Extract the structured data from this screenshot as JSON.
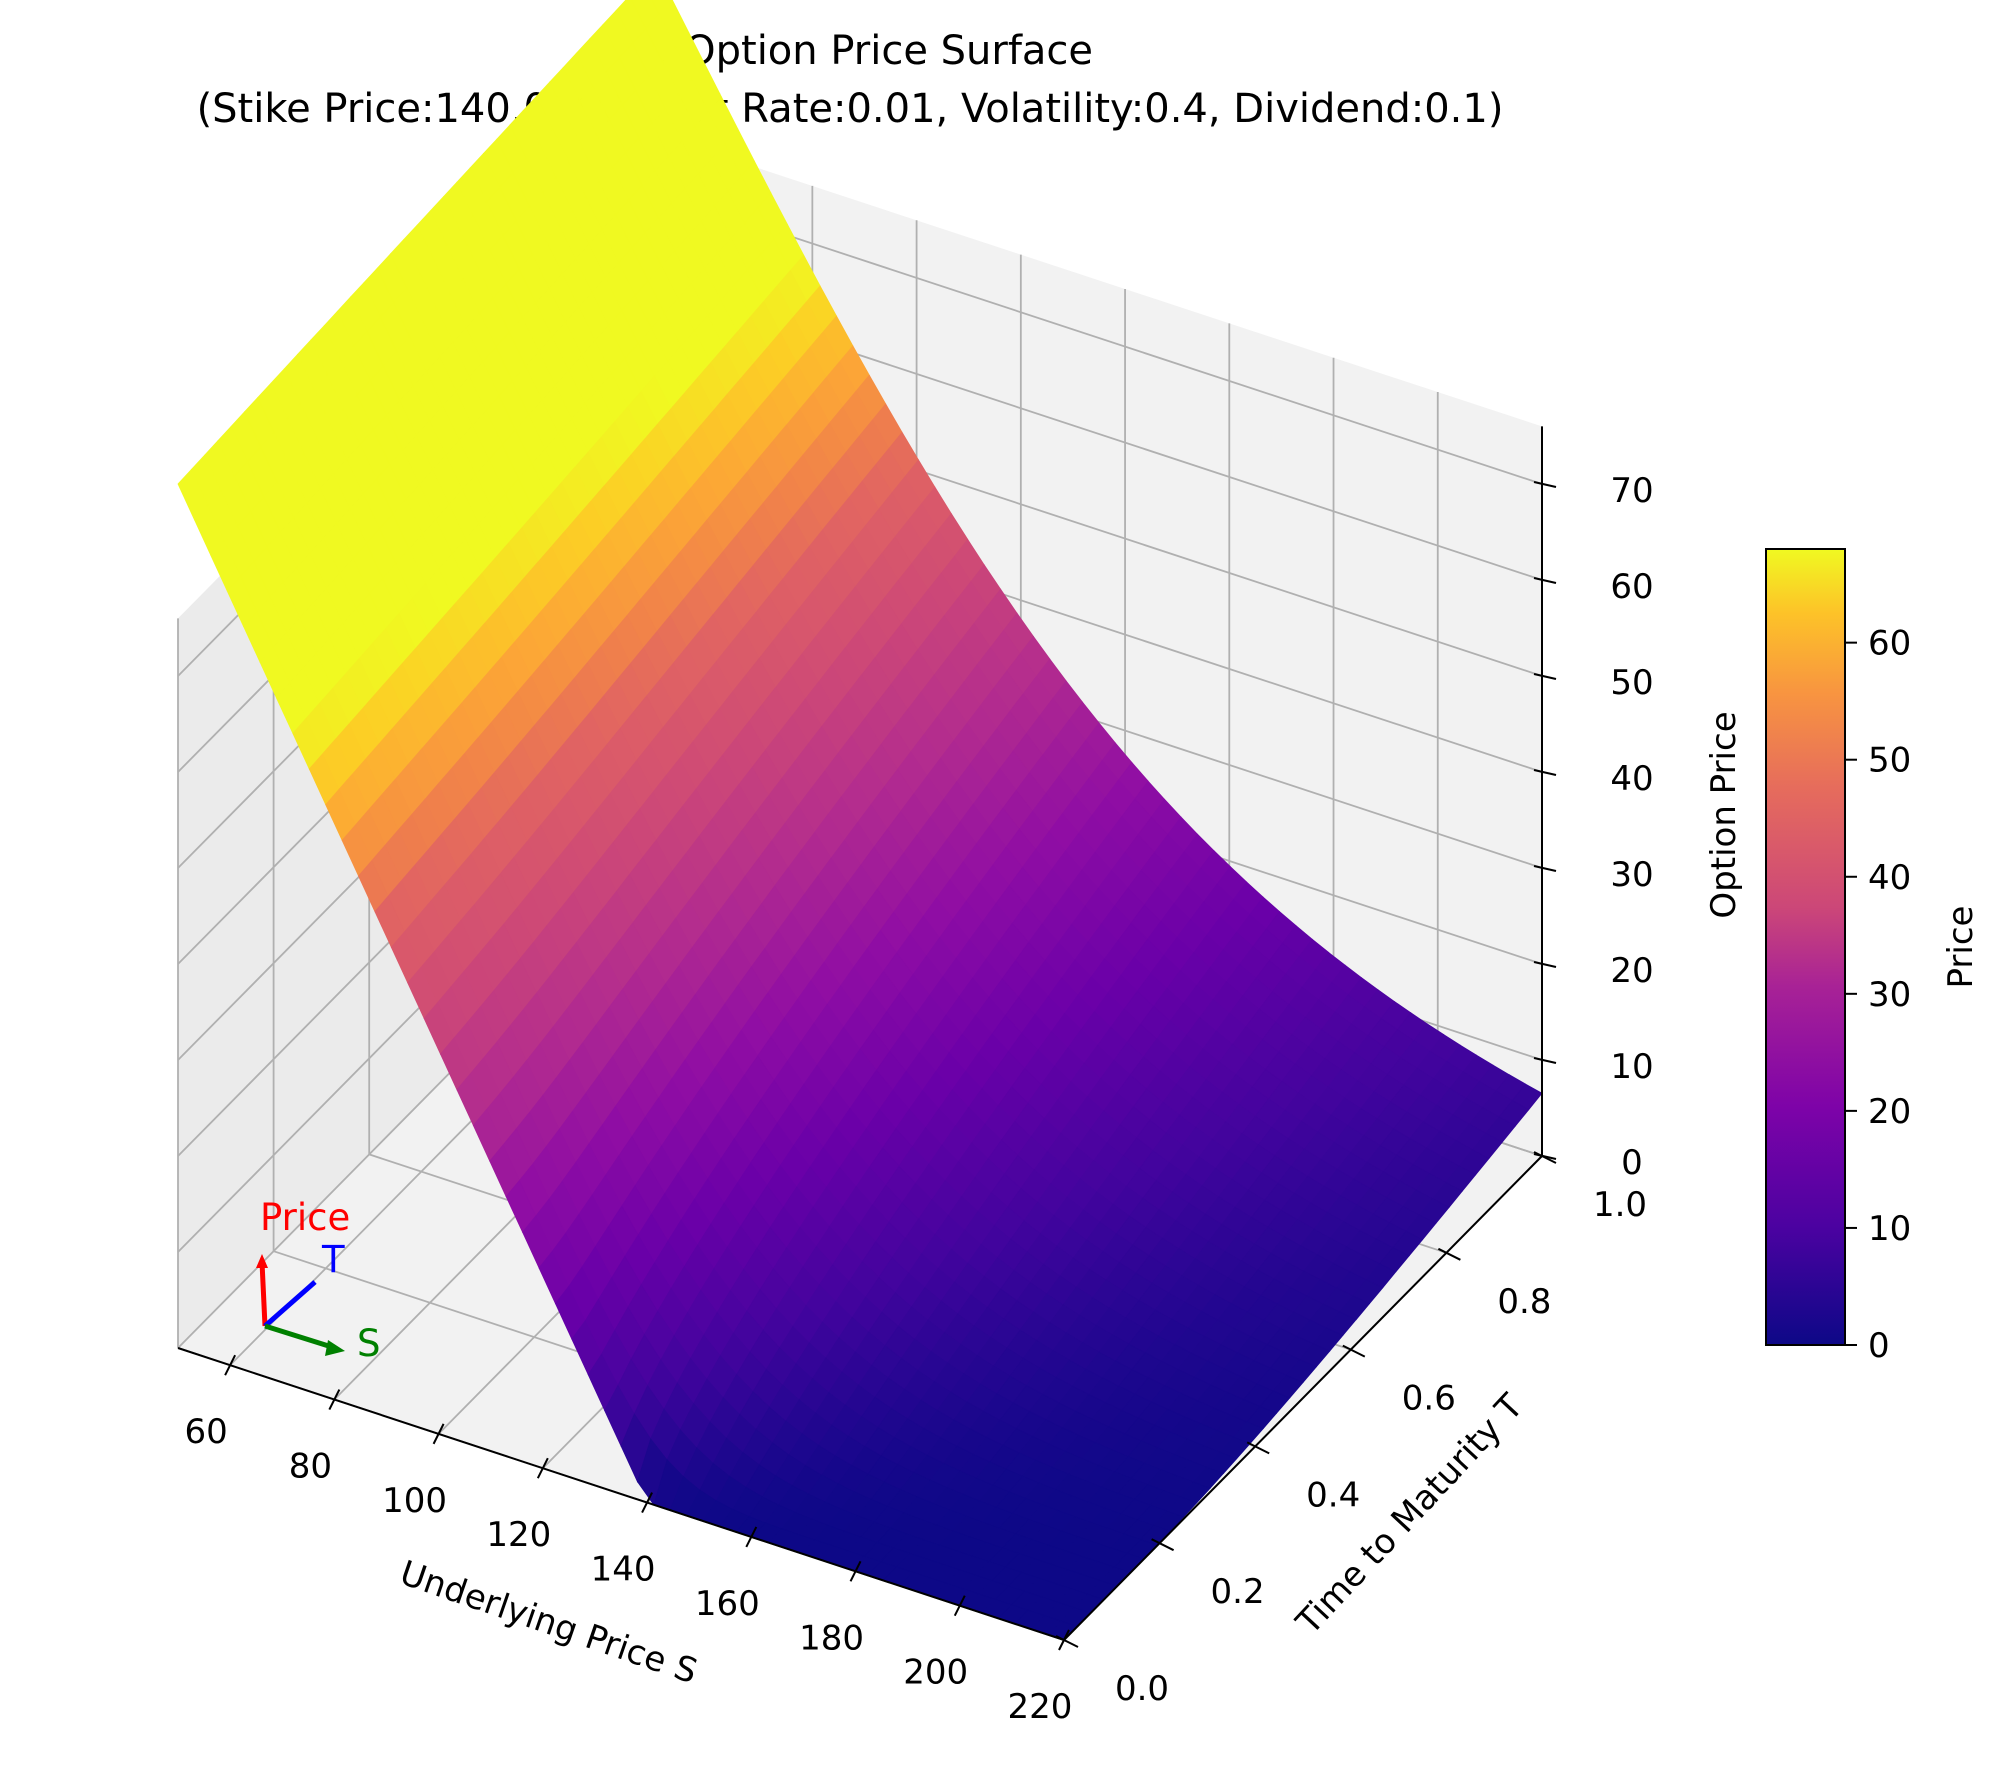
{
  "chart_data": {
    "type": "surface",
    "title": "Put Option Price Surface",
    "subtitle": "(Stike Price:140.0, Interest Rate:0.01, Volatility:0.4, Dividend:0.1)",
    "xlabel": "Underlying Price S",
    "ylabel": "Time to Maturity T",
    "zlabel": "Option Price",
    "colorbar_label": "Price",
    "colormap": "plasma",
    "colors": [
      "#0d0887",
      "#7e03a8",
      "#cc4778",
      "#f89540",
      "#f0f921"
    ],
    "params": {
      "strike": 140.0,
      "rate": 0.01,
      "volatility": 0.4,
      "dividend": 0.1
    },
    "xlim": [
      50,
      220
    ],
    "ylim": [
      0,
      1
    ],
    "zlim": [
      0,
      70
    ],
    "x_ticks": [
      60,
      80,
      100,
      120,
      140,
      160,
      180,
      200,
      220
    ],
    "y_ticks": [
      0.0,
      0.2,
      0.4,
      0.6,
      0.8,
      1.0
    ],
    "z_ticks": [
      0,
      10,
      20,
      30,
      40,
      50,
      60,
      70
    ],
    "x_tick_labels": [
      "60",
      "80",
      "100",
      "120",
      "140",
      "160",
      "180",
      "200",
      "220"
    ],
    "y_tick_labels": [
      "0.0",
      "0.2",
      "0.4",
      "0.6",
      "0.8",
      "1.0"
    ],
    "z_tick_labels": [
      "0",
      "10",
      "20",
      "30",
      "40",
      "50",
      "60",
      "70"
    ],
    "colorbar_ticks": [
      0,
      10,
      20,
      30,
      40,
      50,
      60
    ],
    "colorbar_tick_labels": [
      "0",
      "10",
      "20",
      "30",
      "40",
      "50",
      "60"
    ],
    "colorbar_range": [
      0,
      68
    ],
    "grid": true,
    "orientation_labels": {
      "price": "Price",
      "time": "T",
      "spot": "S"
    }
  }
}
